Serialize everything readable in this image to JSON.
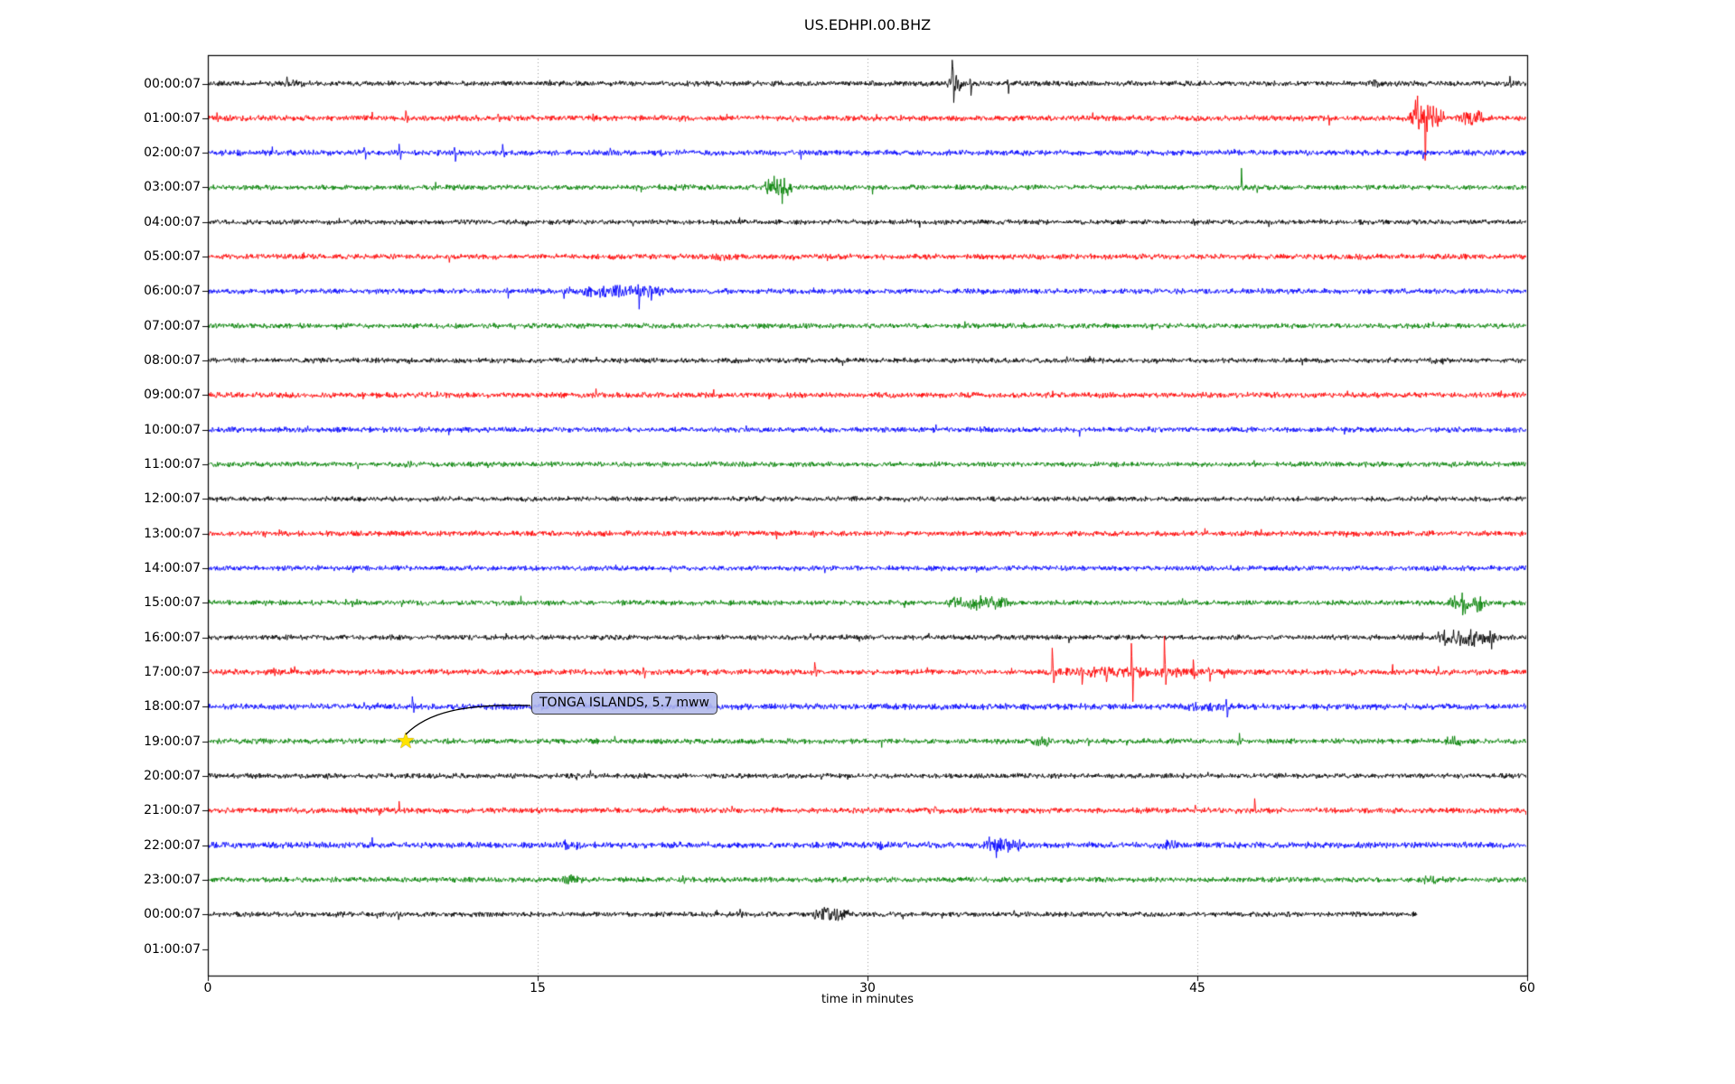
{
  "chart_data": {
    "type": "line",
    "subtype": "seismogram-dayplot",
    "title": "US.EDHPI.00.BHZ",
    "xlabel": "time in minutes",
    "x_range": [
      0,
      60
    ],
    "x_ticks": [
      0,
      15,
      30,
      45,
      60
    ],
    "grid_minutes": [
      15,
      30,
      45
    ],
    "grid_on": true,
    "grid_color": "#999999",
    "frame_color": "#000000",
    "trace_color_cycle": [
      "#000000",
      "#ff0000",
      "#0000ff",
      "#008000"
    ],
    "annotation": {
      "text": "TONGA ISLANDS, 5.7 mww",
      "row_index": 19,
      "row_label": "19:00:07",
      "time_min": 9.0,
      "marker": "star",
      "marker_color": "#ffe300",
      "box_color": "#b1b8eb"
    },
    "rows": [
      {
        "label": "00:00:07",
        "noise": 3.4,
        "has_trace": true,
        "bursts": [
          [
            33.6,
            34.3,
            10
          ],
          [
            52.5,
            53.6,
            3
          ],
          [
            3.2,
            5.0,
            1
          ]
        ],
        "spikes": [
          [
            33.85,
            30,
            22
          ],
          [
            34.65,
            9,
            13
          ],
          [
            36.35,
            7,
            13
          ],
          [
            59.2,
            11,
            5
          ],
          [
            3.6,
            6,
            3
          ]
        ]
      },
      {
        "label": "01:00:07",
        "noise": 3.6,
        "has_trace": true,
        "bursts": [
          [
            54.55,
            56.35,
            16
          ],
          [
            56.8,
            58.2,
            8
          ]
        ],
        "spikes": [
          [
            55.0,
            20,
            10
          ],
          [
            55.3,
            8,
            52
          ],
          [
            55.85,
            18,
            16
          ],
          [
            0.4,
            8,
            4
          ],
          [
            9.0,
            7,
            3
          ],
          [
            13.2,
            6,
            3
          ],
          [
            17.5,
            7,
            3
          ],
          [
            21.4,
            6,
            3
          ]
        ]
      },
      {
        "label": "02:00:07",
        "noise": 3.6,
        "has_trace": true,
        "bursts": [],
        "spikes": [
          [
            7.1,
            7,
            9
          ],
          [
            8.7,
            8,
            10
          ],
          [
            11.2,
            10,
            12
          ],
          [
            13.4,
            9,
            12
          ],
          [
            55.2,
            2,
            9
          ]
        ]
      },
      {
        "label": "03:00:07",
        "noise": 3.3,
        "has_trace": true,
        "bursts": [
          [
            25.2,
            26.7,
            11
          ],
          [
            21.0,
            22.0,
            1.5
          ]
        ],
        "spikes": [
          [
            25.75,
            15,
            7
          ],
          [
            26.05,
            9,
            28
          ],
          [
            47.0,
            24,
            4
          ]
        ]
      },
      {
        "label": "04:00:07",
        "noise": 3.2,
        "has_trace": true,
        "bursts": [],
        "spikes": [
          [
            44.8,
            4,
            4
          ]
        ]
      },
      {
        "label": "05:00:07",
        "noise": 3.6,
        "has_trace": true,
        "bursts": [
          [
            23.0,
            24.0,
            2
          ]
        ],
        "spikes": []
      },
      {
        "label": "06:00:07",
        "noise": 3.5,
        "has_trace": true,
        "bursts": [
          [
            16.5,
            21.2,
            5
          ]
        ],
        "spikes": [
          [
            19.55,
            20,
            22
          ],
          [
            20.1,
            10,
            8
          ],
          [
            13.6,
            5,
            7
          ],
          [
            18.3,
            8,
            6
          ]
        ]
      },
      {
        "label": "07:00:07",
        "noise": 3.3,
        "has_trace": true,
        "bursts": [],
        "spikes": []
      },
      {
        "label": "08:00:07",
        "noise": 3.3,
        "has_trace": true,
        "bursts": [
          [
            55.5,
            56.5,
            2
          ]
        ],
        "spikes": []
      },
      {
        "label": "09:00:07",
        "noise": 3.6,
        "has_trace": true,
        "bursts": [],
        "spikes": []
      },
      {
        "label": "10:00:07",
        "noise": 3.5,
        "has_trace": true,
        "bursts": [],
        "spikes": []
      },
      {
        "label": "11:00:07",
        "noise": 3.3,
        "has_trace": true,
        "bursts": [
          [
            8.8,
            9.6,
            1.5
          ]
        ],
        "spikes": []
      },
      {
        "label": "12:00:07",
        "noise": 3.2,
        "has_trace": true,
        "bursts": [],
        "spikes": []
      },
      {
        "label": "13:00:07",
        "noise": 3.5,
        "has_trace": true,
        "bursts": [],
        "spikes": [
          [
            27.5,
            5,
            4
          ]
        ]
      },
      {
        "label": "14:00:07",
        "noise": 3.4,
        "has_trace": true,
        "bursts": [],
        "spikes": []
      },
      {
        "label": "15:00:07",
        "noise": 3.3,
        "has_trace": true,
        "bursts": [
          [
            33.5,
            36.6,
            6
          ],
          [
            56.4,
            58.3,
            10
          ]
        ],
        "spikes": [
          [
            34.9,
            8,
            6
          ],
          [
            57.0,
            10,
            9
          ],
          [
            44.3,
            5,
            4
          ]
        ]
      },
      {
        "label": "16:00:07",
        "noise": 3.3,
        "has_trace": true,
        "bursts": [
          [
            55.7,
            58.9,
            8
          ]
        ],
        "spikes": [
          [
            56.2,
            15,
            14
          ],
          [
            57.4,
            7,
            9
          ]
        ]
      },
      {
        "label": "17:00:07",
        "noise": 3.7,
        "has_trace": true,
        "bursts": [
          [
            37.8,
            46.0,
            3.5
          ]
        ],
        "spikes": [
          [
            38.4,
            27,
            16
          ],
          [
            39.7,
            10,
            14
          ],
          [
            40.8,
            6,
            20
          ],
          [
            42.0,
            28,
            36
          ],
          [
            43.5,
            38,
            22
          ],
          [
            44.8,
            14,
            10
          ],
          [
            45.5,
            10,
            12
          ],
          [
            19.8,
            4,
            10
          ],
          [
            27.6,
            8,
            6
          ]
        ]
      },
      {
        "label": "18:00:07",
        "noise": 4.0,
        "has_trace": true,
        "bursts": [
          [
            44.0,
            47.0,
            2.5
          ]
        ],
        "spikes": [
          [
            9.3,
            12,
            4
          ],
          [
            46.3,
            6,
            12
          ]
        ]
      },
      {
        "label": "19:00:07",
        "noise": 3.4,
        "has_trace": true,
        "bursts": [
          [
            37.4,
            38.6,
            4
          ],
          [
            56.2,
            57.2,
            4
          ]
        ],
        "spikes": [
          [
            46.9,
            11,
            4
          ],
          [
            40.0,
            5,
            4
          ]
        ]
      },
      {
        "label": "20:00:07",
        "noise": 3.3,
        "has_trace": true,
        "bursts": [],
        "spikes": []
      },
      {
        "label": "21:00:07",
        "noise": 3.6,
        "has_trace": true,
        "bursts": [
          [
            32.5,
            33.5,
            1.5
          ]
        ],
        "spikes": [
          [
            8.7,
            11,
            4
          ],
          [
            44.9,
            9,
            3
          ],
          [
            47.6,
            12,
            4
          ]
        ]
      },
      {
        "label": "22:00:07",
        "noise": 4.0,
        "has_trace": true,
        "bursts": [
          [
            15.9,
            17.0,
            3.5
          ],
          [
            30.2,
            31.1,
            2.5
          ],
          [
            35.0,
            37.4,
            5
          ],
          [
            43.2,
            44.1,
            3.5
          ],
          [
            49.6,
            50.4,
            2.5
          ]
        ],
        "spikes": [
          [
            35.8,
            9,
            8
          ]
        ]
      },
      {
        "label": "23:00:07",
        "noise": 3.4,
        "has_trace": true,
        "bursts": [
          [
            16.1,
            17.1,
            4
          ],
          [
            55.0,
            56.2,
            2.5
          ]
        ],
        "spikes": [
          [
            21.6,
            5,
            6
          ],
          [
            29.0,
            5,
            5
          ]
        ]
      },
      {
        "label": "00:00:07",
        "noise": 3.3,
        "has_trace": true,
        "end_min": 55.0,
        "bursts": [
          [
            27.5,
            29.3,
            7
          ]
        ],
        "spikes": [
          [
            28.2,
            13,
            12
          ],
          [
            8.6,
            5,
            7
          ],
          [
            24.2,
            5,
            7
          ],
          [
            28.6,
            10,
            9
          ]
        ]
      },
      {
        "label": "01:00:07",
        "noise": 0,
        "has_trace": false,
        "bursts": [],
        "spikes": []
      }
    ]
  }
}
